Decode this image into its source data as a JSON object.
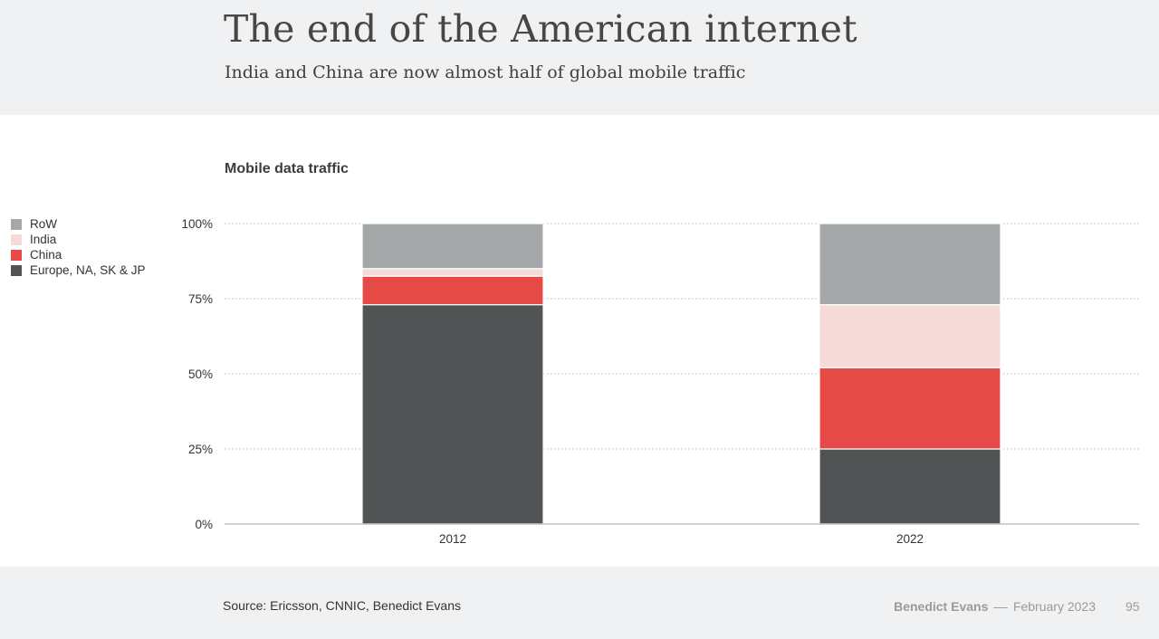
{
  "header": {
    "title": "The end of the American internet",
    "subtitle": "India and China are now almost half of global mobile traffic"
  },
  "chart_label": "Mobile data traffic",
  "colors": {
    "row": "#a5a8a8",
    "india": "#f6dad7",
    "china": "#e54a47",
    "europe_na_sk_jp": "#505454",
    "grid": "#b9b9b9",
    "axis": "#c4c4c4",
    "text": "#333333"
  },
  "legend": [
    {
      "label": "RoW",
      "color": "#a5a8a8"
    },
    {
      "label": "India",
      "color": "#f6dad7"
    },
    {
      "label": "China",
      "color": "#e54a47"
    },
    {
      "label": "Europe, NA, SK & JP",
      "color": "#505454"
    }
  ],
  "chart_data": {
    "type": "bar",
    "stacked": true,
    "categories": [
      "2012",
      "2022"
    ],
    "series": [
      {
        "name": "Europe, NA, SK & JP",
        "color": "#505454",
        "values": [
          73,
          25
        ]
      },
      {
        "name": "China",
        "color": "#e54a47",
        "values": [
          9.5,
          27
        ]
      },
      {
        "name": "India",
        "color": "#f6dad7",
        "values": [
          2.5,
          21
        ]
      },
      {
        "name": "RoW",
        "color": "#a5a8a8",
        "values": [
          15,
          27
        ]
      }
    ],
    "y_ticks": [
      "0%",
      "25%",
      "50%",
      "75%",
      "100%"
    ],
    "y_tick_values": [
      0,
      25,
      50,
      75,
      100
    ],
    "ylim": [
      0,
      100
    ],
    "grid": true,
    "legend_position": "left"
  },
  "footer": {
    "source": "Source: Ericsson, CNNIC, Benedict Evans",
    "author": "Benedict Evans",
    "separator": "––",
    "date": "February 2023",
    "page": "95"
  }
}
